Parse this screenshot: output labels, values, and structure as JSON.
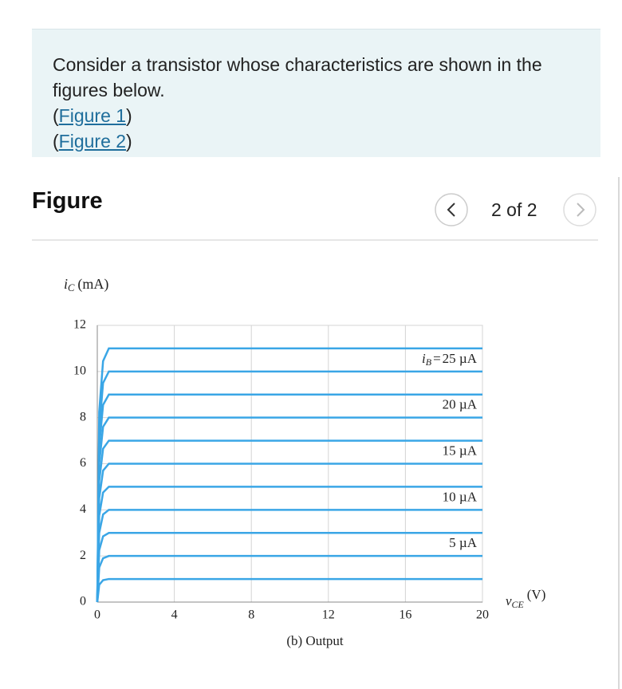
{
  "problem": {
    "text": "Consider a transistor whose characteristics are shown in the figures below.",
    "links": [
      {
        "open": "(",
        "label": "Figure 1",
        "close": ")"
      },
      {
        "open": "(",
        "label": "Figure 2",
        "close": ")"
      }
    ]
  },
  "figure": {
    "title": "Figure",
    "pager": "2 of 2"
  },
  "chart_data": {
    "type": "line",
    "ylabel": {
      "var": "i",
      "sub": "C",
      "unit": "(mA)"
    },
    "xlabel": {
      "var": "v",
      "sub": "CE",
      "unit": "(V)"
    },
    "caption": "(b) Output",
    "series_label_var": {
      "var": "i",
      "sub": "B",
      "sign": "="
    },
    "x": [
      0,
      0.1,
      0.3,
      0.6,
      20
    ],
    "xlim": [
      0,
      20
    ],
    "xticks": [
      0,
      4,
      8,
      12,
      16,
      20
    ],
    "ylim": [
      0,
      12
    ],
    "yticks": [
      0,
      2,
      4,
      6,
      8,
      10,
      12
    ],
    "grid": true,
    "color": "#3aa6e6",
    "series": [
      {
        "values": [
          0,
          0.75,
          0.95,
          1,
          1
        ]
      },
      {
        "name": "5 µA",
        "values": [
          0,
          1.5,
          1.9,
          2,
          2
        ]
      },
      {
        "values": [
          0,
          2.25,
          2.85,
          3,
          3
        ]
      },
      {
        "name": "10 µA",
        "values": [
          0,
          3,
          3.8,
          4,
          4
        ]
      },
      {
        "values": [
          0,
          3.75,
          4.75,
          5,
          5
        ]
      },
      {
        "name": "15 µA",
        "values": [
          0,
          4.5,
          5.7,
          6,
          6
        ]
      },
      {
        "values": [
          0,
          5.25,
          6.65,
          7,
          7
        ]
      },
      {
        "name": "20 µA",
        "values": [
          0,
          6,
          7.6,
          8,
          8
        ]
      },
      {
        "values": [
          0,
          6.75,
          8.55,
          9,
          9
        ]
      },
      {
        "name": "25 µA",
        "values": [
          0,
          7.5,
          9.5,
          10,
          10
        ]
      },
      {
        "values": [
          0,
          8.25,
          10.45,
          11,
          11
        ]
      }
    ]
  }
}
